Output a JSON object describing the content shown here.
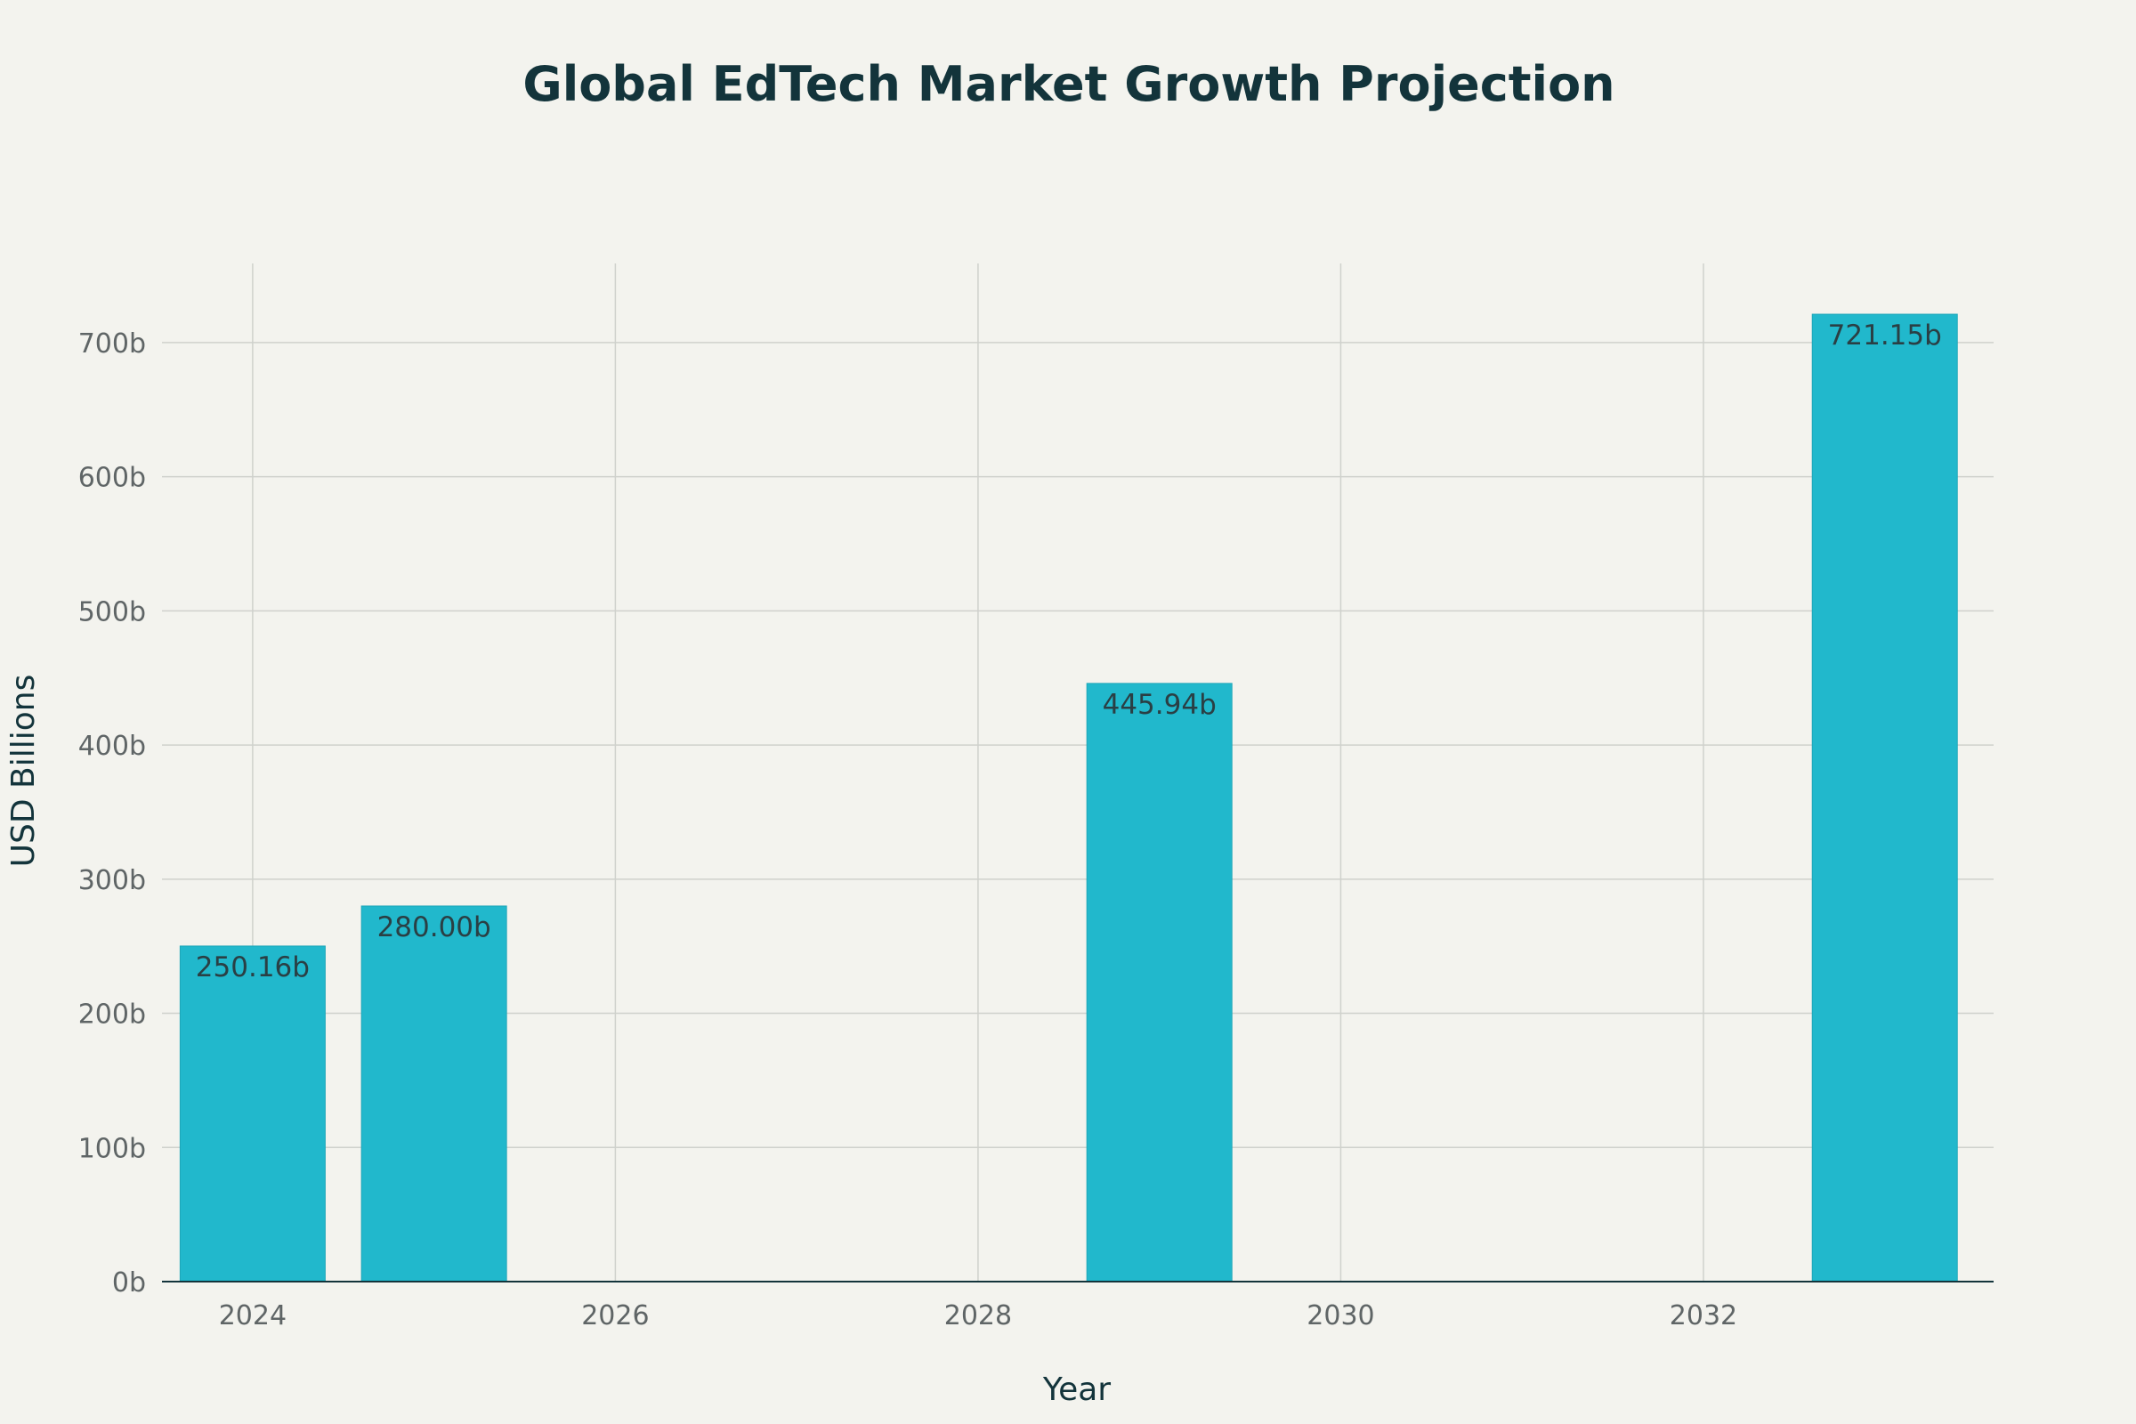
{
  "chart_data": {
    "type": "bar",
    "title": "Global EdTech Market Growth Projection",
    "xlabel": "Year",
    "ylabel": "USD Billions",
    "x": [
      2024,
      2025,
      2029,
      2033
    ],
    "values": [
      250.16,
      280.0,
      445.94,
      721.15
    ],
    "data_labels": [
      "250.16b",
      "280.00b",
      "445.94b",
      "721.15b"
    ],
    "xlim": [
      2023.5,
      2033.6
    ],
    "ylim": [
      0,
      759
    ],
    "x_ticks": [
      2024,
      2026,
      2028,
      2030,
      2032
    ],
    "y_ticks": [
      0,
      100,
      200,
      300,
      400,
      500,
      600,
      700
    ],
    "y_tick_labels": [
      "0b",
      "100b",
      "200b",
      "300b",
      "400b",
      "500b",
      "600b",
      "700b"
    ],
    "grid": true,
    "colors": {
      "bar": "#21b8cc",
      "bar_edge": "#1ea6b8",
      "background": "#f3f3ee",
      "grid": "#cfd1cc",
      "axis": "#13343b"
    }
  }
}
